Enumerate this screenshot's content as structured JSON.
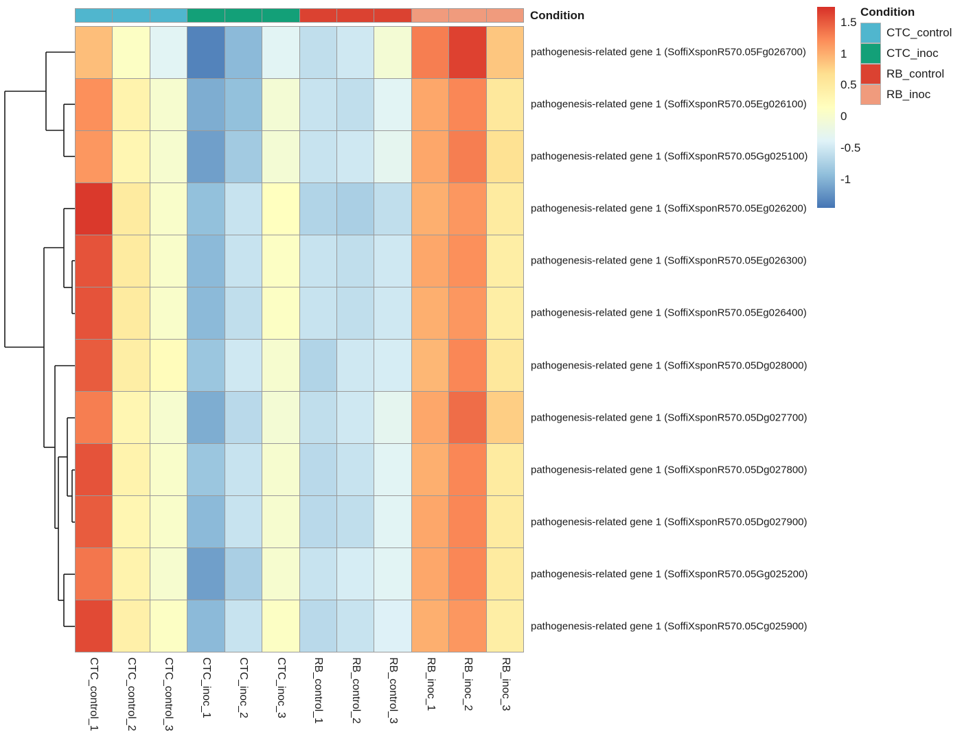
{
  "figure": {
    "background": "#ffffff",
    "grid_line_color": "#9a9a9a",
    "dendrogram_color": "#1a1a1a"
  },
  "annotation_track": {
    "label": "Condition",
    "column_conditions": [
      "CTC_control",
      "CTC_control",
      "CTC_control",
      "CTC_inoc",
      "CTC_inoc",
      "CTC_inoc",
      "RB_control",
      "RB_control",
      "RB_control",
      "RB_inoc",
      "RB_inoc",
      "RB_inoc"
    ]
  },
  "condition_legend": {
    "title": "Condition",
    "items": [
      {
        "label": "CTC_control",
        "color": "#50B6CE"
      },
      {
        "label": "CTC_inoc",
        "color": "#13A078"
      },
      {
        "label": "RB_control",
        "color": "#DB4231"
      },
      {
        "label": "RB_inoc",
        "color": "#F09B7D"
      }
    ]
  },
  "chart_data": {
    "type": "heatmap",
    "title": "",
    "columns": [
      "CTC_control_1",
      "CTC_control_2",
      "CTC_control_3",
      "CTC_inoc_1",
      "CTC_inoc_2",
      "CTC_inoc_3",
      "RB_control_1",
      "RB_control_2",
      "RB_control_3",
      "RB_inoc_1",
      "RB_inoc_2",
      "RB_inoc_3"
    ],
    "rows": [
      "pathogenesis-related gene 1 (SoffiXsponR570.05Fg026700)",
      "pathogenesis-related gene 1 (SoffiXsponR570.05Eg026100)",
      "pathogenesis-related gene 1 (SoffiXsponR570.05Gg025100)",
      "pathogenesis-related gene 1 (SoffiXsponR570.05Eg026200)",
      "pathogenesis-related gene 1 (SoffiXsponR570.05Eg026300)",
      "pathogenesis-related gene 1 (SoffiXsponR570.05Eg026400)",
      "pathogenesis-related gene 1 (SoffiXsponR570.05Dg028000)",
      "pathogenesis-related gene 1 (SoffiXsponR570.05Dg027700)",
      "pathogenesis-related gene 1 (SoffiXsponR570.05Dg027800)",
      "pathogenesis-related gene 1 (SoffiXsponR570.05Dg027900)",
      "pathogenesis-related gene 1 (SoffiXsponR570.05Gg025200)",
      "pathogenesis-related gene 1 (SoffiXsponR570.05Cg025900)"
    ],
    "values": [
      [
        0.9,
        0.1,
        -0.35,
        -1.35,
        -0.95,
        -0.35,
        -0.6,
        -0.5,
        -0.05,
        1.3,
        1.65,
        0.85
      ],
      [
        1.2,
        0.35,
        0.0,
        -1.05,
        -0.9,
        -0.05,
        -0.55,
        -0.6,
        -0.35,
        1.05,
        1.25,
        0.55
      ],
      [
        1.15,
        0.3,
        0.0,
        -1.15,
        -0.8,
        -0.05,
        -0.55,
        -0.5,
        -0.3,
        1.05,
        1.3,
        0.65
      ],
      [
        1.7,
        0.5,
        0.05,
        -0.9,
        -0.55,
        0.15,
        -0.7,
        -0.75,
        -0.6,
        1.0,
        1.15,
        0.5
      ],
      [
        1.55,
        0.5,
        0.05,
        -0.95,
        -0.55,
        0.1,
        -0.55,
        -0.6,
        -0.5,
        1.05,
        1.2,
        0.45
      ],
      [
        1.55,
        0.5,
        0.05,
        -0.95,
        -0.6,
        0.1,
        -0.55,
        -0.6,
        -0.5,
        1.0,
        1.15,
        0.45
      ],
      [
        1.5,
        0.45,
        0.2,
        -0.85,
        -0.5,
        0.0,
        -0.7,
        -0.5,
        -0.45,
        0.95,
        1.25,
        0.55
      ],
      [
        1.3,
        0.3,
        0.0,
        -1.05,
        -0.65,
        -0.05,
        -0.6,
        -0.5,
        -0.3,
        1.05,
        1.4,
        0.8
      ],
      [
        1.55,
        0.35,
        0.05,
        -0.85,
        -0.55,
        0.0,
        -0.65,
        -0.55,
        -0.35,
        1.0,
        1.25,
        0.5
      ],
      [
        1.5,
        0.3,
        0.05,
        -0.95,
        -0.55,
        0.0,
        -0.65,
        -0.6,
        -0.35,
        1.05,
        1.25,
        0.5
      ],
      [
        1.35,
        0.35,
        0.0,
        -1.15,
        -0.75,
        0.0,
        -0.55,
        -0.45,
        -0.35,
        1.05,
        1.25,
        0.5
      ],
      [
        1.6,
        0.4,
        0.1,
        -0.95,
        -0.55,
        0.1,
        -0.65,
        -0.55,
        -0.4,
        1.0,
        1.15,
        0.45
      ]
    ],
    "colorscale": {
      "stops": [
        "#4575b4",
        "#91bfdb",
        "#e0f3f8",
        "#ffffbf",
        "#fee090",
        "#fc8d59",
        "#d73027"
      ],
      "domain": [
        -1.45,
        1.75
      ]
    },
    "legend_ticks": [
      {
        "label": "1.5",
        "value": 1.5
      },
      {
        "label": "1",
        "value": 1.0
      },
      {
        "label": "0.5",
        "value": 0.5
      },
      {
        "label": "0",
        "value": 0.0
      },
      {
        "label": "-0.5",
        "value": -0.5
      },
      {
        "label": "-1",
        "value": -1.0
      }
    ],
    "legend_position": "right",
    "row_dendrogram_segments": [
      [
        67,
        76,
        109,
        76
      ],
      [
        93,
        152,
        109,
        152
      ],
      [
        93,
        228,
        109,
        228
      ],
      [
        93,
        152,
        93,
        228
      ],
      [
        67,
        190,
        93,
        190
      ],
      [
        67,
        76,
        67,
        190
      ],
      [
        7,
        133,
        67,
        133
      ],
      [
        7,
        133,
        7,
        506
      ],
      [
        7,
        506,
        64,
        506
      ],
      [
        64,
        361,
        64,
        652
      ],
      [
        64,
        361,
        93,
        361
      ],
      [
        93,
        304,
        93,
        419
      ],
      [
        93,
        304,
        109,
        304
      ],
      [
        93,
        419,
        105,
        419
      ],
      [
        105,
        380,
        105,
        457
      ],
      [
        105,
        380,
        109,
        380
      ],
      [
        105,
        457,
        109,
        457
      ],
      [
        64,
        652,
        80,
        652
      ],
      [
        80,
        533,
        80,
        770
      ],
      [
        80,
        533,
        109,
        533
      ],
      [
        80,
        770,
        85,
        770
      ],
      [
        85,
        666,
        85,
        875
      ],
      [
        85,
        666,
        98,
        666
      ],
      [
        98,
        609,
        98,
        723
      ],
      [
        98,
        609,
        109,
        609
      ],
      [
        98,
        723,
        105,
        723
      ],
      [
        105,
        685,
        105,
        761
      ],
      [
        105,
        685,
        109,
        685
      ],
      [
        105,
        761,
        109,
        761
      ],
      [
        85,
        875,
        93,
        875
      ],
      [
        93,
        837,
        93,
        913
      ],
      [
        93,
        837,
        109,
        837
      ],
      [
        93,
        913,
        109,
        913
      ]
    ]
  }
}
